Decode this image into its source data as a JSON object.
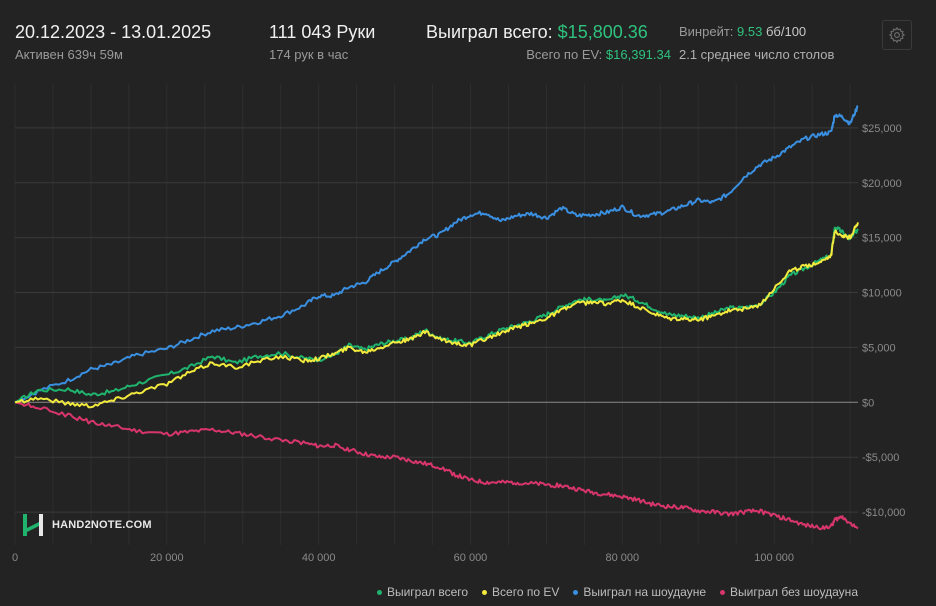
{
  "header": {
    "date_range": "20.12.2023 - 13.01.2025",
    "active": "Активен 639ч 59м",
    "hands": "111 043 Руки",
    "hands_per_hour": "174 рук в час",
    "won_total_label": "Выиграл всего:",
    "won_total_value": "$15,800.36",
    "ev_total_label": "Всего по EV:",
    "ev_total_value": "$16,391.34",
    "winrate_label": "Винрейт:",
    "winrate_value": "9.53",
    "winrate_unit": "бб/100",
    "avg_tables": "2.1 среднее число столов"
  },
  "logo": {
    "text": "HAND2NOTE.COM"
  },
  "icons": {
    "settings": "gear-icon",
    "logo": "hand2note-logo-icon"
  },
  "colors": {
    "background": "#232323",
    "green": "#1fb36e",
    "yellow": "#f2ea3c",
    "blue": "#3a8fe0",
    "pink": "#d8366b",
    "positive_text": "#2ec27e"
  },
  "chart_data": {
    "type": "line",
    "x_tick_labels": [
      "0",
      "20 000",
      "40 000",
      "60 000",
      "80 000",
      "100 000"
    ],
    "x_ticks": [
      0,
      20000,
      40000,
      60000,
      80000,
      100000
    ],
    "y_tick_labels": [
      "$25,000",
      "$20,000",
      "$15,000",
      "$10,000",
      "$5,000",
      "$0",
      "-$5,000",
      "-$10,000"
    ],
    "y_ticks": [
      25000,
      20000,
      15000,
      10000,
      5000,
      0,
      -5000,
      -10000
    ],
    "xlim": [
      0,
      111043
    ],
    "ylim": [
      -13000,
      29000
    ],
    "grid": true,
    "legend_position": "bottom-right",
    "series": [
      {
        "name": "Выиграл всего",
        "color": "#1fb36e",
        "x": [
          0,
          3000,
          7000,
          10000,
          13000,
          16000,
          20000,
          23000,
          26000,
          29000,
          32000,
          35000,
          38000,
          40000,
          42000,
          44000,
          46000,
          48000,
          50000,
          52000,
          54000,
          56000,
          58000,
          60000,
          62000,
          64000,
          66000,
          68000,
          70000,
          72000,
          74000,
          76000,
          78000,
          80000,
          82000,
          84000,
          86000,
          88000,
          90000,
          92000,
          94000,
          96000,
          98000,
          100000,
          102000,
          104000,
          106000,
          107500,
          108000,
          109000,
          110000,
          111043
        ],
        "y": [
          0,
          1100,
          1200,
          700,
          1000,
          1700,
          2500,
          3200,
          4200,
          3600,
          4200,
          4500,
          4000,
          3900,
          4300,
          5200,
          4800,
          5300,
          5600,
          5800,
          6600,
          5800,
          5600,
          5400,
          6000,
          6600,
          7000,
          7400,
          8000,
          8700,
          9300,
          9400,
          9200,
          9800,
          9300,
          8600,
          8000,
          7900,
          7700,
          8100,
          8600,
          8600,
          8900,
          10000,
          11500,
          12200,
          12900,
          13400,
          16000,
          15500,
          14800,
          15800
        ]
      },
      {
        "name": "Всего по EV",
        "color": "#f2ea3c",
        "x": [
          0,
          3000,
          7000,
          10000,
          13000,
          16000,
          20000,
          23000,
          26000,
          29000,
          32000,
          35000,
          38000,
          40000,
          42000,
          44000,
          46000,
          48000,
          50000,
          52000,
          54000,
          56000,
          58000,
          60000,
          62000,
          64000,
          66000,
          68000,
          70000,
          72000,
          74000,
          76000,
          78000,
          80000,
          82000,
          84000,
          86000,
          88000,
          90000,
          92000,
          94000,
          96000,
          98000,
          100000,
          102000,
          104000,
          106000,
          107500,
          108000,
          109000,
          110000,
          111043
        ],
        "y": [
          0,
          400,
          -100,
          -300,
          200,
          900,
          1700,
          2700,
          3600,
          3200,
          3700,
          4200,
          3800,
          4000,
          4400,
          5000,
          4600,
          5000,
          5500,
          5700,
          6400,
          5700,
          5400,
          5200,
          5800,
          6300,
          6800,
          7200,
          7700,
          8400,
          9000,
          9100,
          9000,
          9300,
          8700,
          8100,
          7600,
          7600,
          7500,
          7900,
          8400,
          8500,
          8800,
          10400,
          11900,
          12400,
          12800,
          13400,
          15600,
          15200,
          15000,
          16391
        ]
      },
      {
        "name": "Выиграл на шоудауне",
        "color": "#3a8fe0",
        "x": [
          0,
          3000,
          7000,
          10000,
          13000,
          16000,
          20000,
          23000,
          26000,
          29000,
          32000,
          35000,
          38000,
          40000,
          42000,
          44000,
          46000,
          48000,
          50000,
          52000,
          54000,
          56000,
          58000,
          60000,
          62000,
          64000,
          66000,
          68000,
          70000,
          72000,
          74000,
          76000,
          78000,
          80000,
          82000,
          84000,
          86000,
          88000,
          90000,
          92000,
          94000,
          96000,
          98000,
          100000,
          102000,
          104000,
          106000,
          107500,
          108000,
          109000,
          110000,
          111043
        ],
        "y": [
          0,
          1000,
          2000,
          3000,
          3500,
          4300,
          4900,
          5700,
          6500,
          6800,
          7300,
          7900,
          8800,
          9700,
          9700,
          10500,
          10900,
          11900,
          12800,
          13800,
          14900,
          15300,
          16400,
          17100,
          17300,
          16500,
          17000,
          17200,
          16800,
          17700,
          17000,
          17100,
          17300,
          17800,
          17000,
          17100,
          17400,
          17900,
          18400,
          18200,
          19000,
          20500,
          21600,
          22300,
          23200,
          24000,
          24400,
          24600,
          26200,
          26000,
          25400,
          27000
        ]
      },
      {
        "name": "Выиграл без шоудауна",
        "color": "#d8366b",
        "x": [
          0,
          3000,
          7000,
          10000,
          13000,
          16000,
          20000,
          23000,
          26000,
          29000,
          32000,
          35000,
          38000,
          40000,
          42000,
          44000,
          46000,
          48000,
          50000,
          52000,
          54000,
          56000,
          58000,
          60000,
          62000,
          64000,
          66000,
          68000,
          70000,
          72000,
          74000,
          76000,
          78000,
          80000,
          82000,
          84000,
          86000,
          88000,
          90000,
          92000,
          94000,
          96000,
          98000,
          100000,
          102000,
          104000,
          106000,
          107500,
          108000,
          109000,
          110000,
          111043
        ],
        "y": [
          0,
          -500,
          -1200,
          -1800,
          -2200,
          -2600,
          -2900,
          -2700,
          -2500,
          -2800,
          -3100,
          -3400,
          -3700,
          -4000,
          -3900,
          -4300,
          -4700,
          -5000,
          -5000,
          -5300,
          -5600,
          -5900,
          -6600,
          -7100,
          -7300,
          -7300,
          -7300,
          -7400,
          -7500,
          -7600,
          -7900,
          -8200,
          -8400,
          -8600,
          -8900,
          -9300,
          -9500,
          -9600,
          -9900,
          -10000,
          -10200,
          -10000,
          -9900,
          -10300,
          -10700,
          -11200,
          -11400,
          -11300,
          -10700,
          -10400,
          -11000,
          -11500
        ]
      }
    ]
  }
}
